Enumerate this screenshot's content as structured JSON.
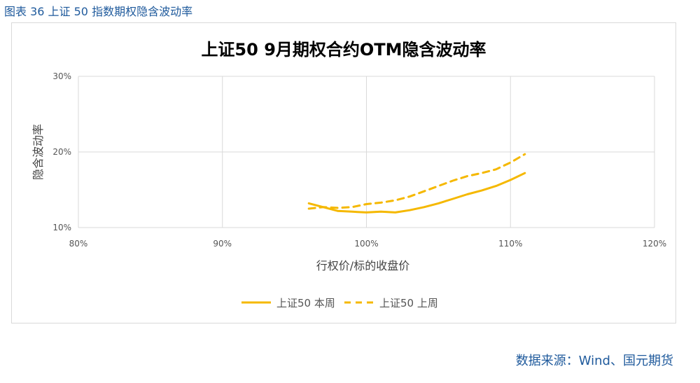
{
  "caption": "图表 36 上证 50 指数期权隐含波动率",
  "source": "数据来源：Wind、国元期货",
  "colors": {
    "series": "#f5b800",
    "grid": "#d9d9d9",
    "caption": "#1f5a9c"
  },
  "chart_data": {
    "type": "line",
    "title": "上证50 9月期权合约OTM隐含波动率",
    "xlabel": "行权价/标的收盘价",
    "ylabel": "隐含波动率",
    "xlim": [
      0.8,
      1.2
    ],
    "ylim": [
      0.1,
      0.3
    ],
    "x_ticks": [
      0.8,
      0.9,
      1.0,
      1.1,
      1.2
    ],
    "x_tick_labels": [
      "80%",
      "90%",
      "100%",
      "110%",
      "120%"
    ],
    "y_ticks": [
      0.1,
      0.2,
      0.3
    ],
    "y_tick_labels": [
      "10%",
      "20%",
      "30%"
    ],
    "grid": true,
    "legend": "bottom",
    "series": [
      {
        "name": "上证50 本周",
        "style": "solid",
        "x": [
          0.96,
          0.97,
          0.98,
          0.99,
          1.0,
          1.01,
          1.02,
          1.03,
          1.04,
          1.05,
          1.06,
          1.07,
          1.08,
          1.09,
          1.1,
          1.11
        ],
        "y": [
          0.132,
          0.127,
          0.122,
          0.121,
          0.12,
          0.121,
          0.12,
          0.123,
          0.127,
          0.132,
          0.138,
          0.144,
          0.149,
          0.155,
          0.163,
          0.172
        ]
      },
      {
        "name": "上证50 上周",
        "style": "dashed",
        "x": [
          0.96,
          0.97,
          0.98,
          0.99,
          1.0,
          1.01,
          1.02,
          1.03,
          1.04,
          1.05,
          1.06,
          1.07,
          1.08,
          1.09,
          1.1,
          1.11
        ],
        "y": [
          0.125,
          0.127,
          0.126,
          0.127,
          0.131,
          0.133,
          0.136,
          0.141,
          0.148,
          0.155,
          0.162,
          0.168,
          0.172,
          0.177,
          0.186,
          0.197
        ]
      }
    ]
  }
}
